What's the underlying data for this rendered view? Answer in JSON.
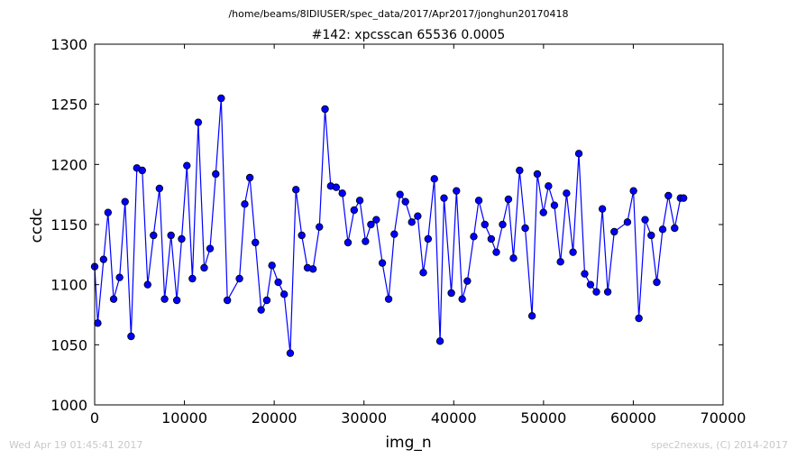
{
  "header": {
    "path": "/home/beams/8IDIUSER/spec_data/2017/Apr2017/jonghun20170418"
  },
  "footer": {
    "timestamp": "Wed Apr 19 01:45:41 2017",
    "credit": "spec2nexus, (C) 2014-2017"
  },
  "chart_data": {
    "type": "line",
    "title": "#142: xpcsscan 65536 0.0005",
    "xlabel": "img_n",
    "ylabel": "ccdc",
    "xlim": [
      0,
      70000
    ],
    "ylim": [
      1000,
      1300
    ],
    "xticks": [
      0,
      10000,
      20000,
      30000,
      40000,
      50000,
      60000,
      70000
    ],
    "yticks": [
      1000,
      1050,
      1100,
      1150,
      1200,
      1250,
      1300
    ],
    "grid": false,
    "marker": "circle",
    "colors": {
      "line": "#0000ff",
      "marker_fill": "#0000ff",
      "marker_edge": "#000000"
    },
    "series": [
      {
        "x": [
          0,
          344,
          990,
          1490,
          2114,
          2777,
          3388,
          4058,
          4697,
          5299,
          5902,
          6557,
          7217,
          7791,
          8505,
          9154,
          9689,
          10272,
          10885,
          11539,
          12201,
          12858,
          13487,
          14093,
          14779,
          16127,
          16718,
          17286,
          17902,
          18545,
          19176,
          19751,
          20451,
          21109,
          21787,
          22419,
          23067,
          23706,
          24322,
          25033,
          25662,
          26296,
          26900,
          27587,
          28217,
          28906,
          29532,
          30167,
          30775,
          31368,
          32045,
          32747,
          33378,
          34011,
          34617,
          35323,
          35989,
          36608,
          37143,
          37837,
          38472,
          38916,
          39731,
          40298,
          40942,
          41514,
          42229,
          42788,
          43463,
          44175,
          44742,
          45445,
          46089,
          46651,
          47337,
          47960,
          48722,
          49308,
          49987,
          50551,
          51213,
          51889,
          52561,
          53288,
          53936,
          54582,
          55229,
          55888,
          56555,
          57153,
          57878,
          59348,
          60022,
          60622,
          61314,
          61997,
          62615,
          63275,
          63907,
          64606,
          65257,
          65600
        ],
        "y": [
          1115,
          1068,
          1121,
          1160,
          1088,
          1106,
          1169,
          1057,
          1197,
          1195,
          1100,
          1141,
          1180,
          1088,
          1141,
          1087,
          1138,
          1199,
          1105,
          1235,
          1114,
          1130,
          1192,
          1255,
          1087,
          1105,
          1167,
          1189,
          1135,
          1079,
          1087,
          1116,
          1102,
          1092,
          1043,
          1179,
          1141,
          1114,
          1113,
          1148,
          1246,
          1182,
          1181,
          1176,
          1135,
          1162,
          1170,
          1136,
          1150,
          1154,
          1118,
          1088,
          1142,
          1175,
          1169,
          1152,
          1157,
          1110,
          1138,
          1188,
          1053,
          1172,
          1093,
          1178,
          1088,
          1103,
          1140,
          1170,
          1150,
          1138,
          1127,
          1150,
          1171,
          1122,
          1195,
          1147,
          1074,
          1192,
          1160,
          1182,
          1166,
          1119,
          1176,
          1127,
          1209,
          1109,
          1100,
          1094,
          1163,
          1094,
          1144,
          1152,
          1178,
          1072,
          1154,
          1141,
          1102,
          1146,
          1174,
          1147,
          1172,
          1172
        ]
      }
    ]
  }
}
